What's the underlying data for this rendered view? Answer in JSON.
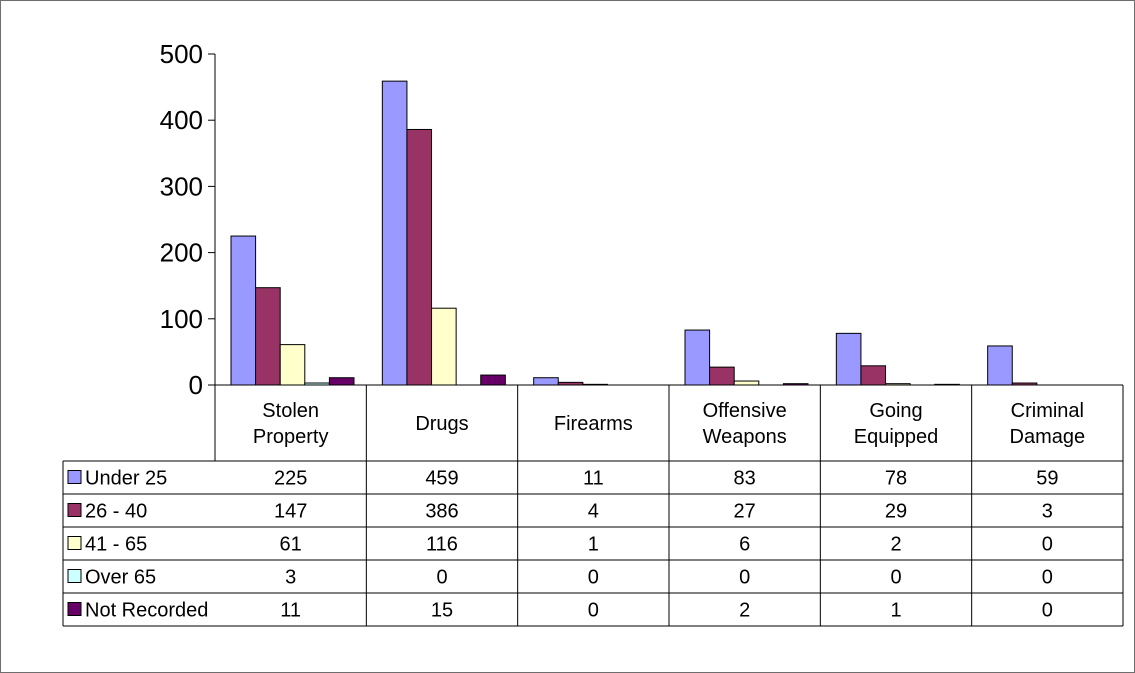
{
  "chart_data": {
    "type": "bar",
    "categories": [
      [
        "Stolen",
        "Property"
      ],
      [
        "Drugs"
      ],
      [
        "Firearms"
      ],
      [
        "Offensive",
        "Weapons"
      ],
      [
        "Going",
        "Equipped"
      ],
      [
        "Criminal",
        "Damage"
      ]
    ],
    "series": [
      {
        "name": "Under 25",
        "color": "#9999ff",
        "values": [
          225,
          459,
          11,
          83,
          78,
          59
        ]
      },
      {
        "name": "26 - 40",
        "color": "#993366",
        "values": [
          147,
          386,
          4,
          27,
          29,
          3
        ]
      },
      {
        "name": "41 - 65",
        "color": "#ffffcc",
        "values": [
          61,
          116,
          1,
          6,
          2,
          0
        ]
      },
      {
        "name": "Over 65",
        "color": "#ccffff",
        "values": [
          3,
          0,
          0,
          0,
          0,
          0
        ]
      },
      {
        "name": "Not Recorded",
        "color": "#660066",
        "values": [
          11,
          15,
          0,
          2,
          1,
          0
        ]
      }
    ],
    "ylim": [
      0,
      500
    ],
    "yticks": [
      0,
      100,
      200,
      300,
      400,
      500
    ],
    "legend": "data-table",
    "grid": false
  }
}
